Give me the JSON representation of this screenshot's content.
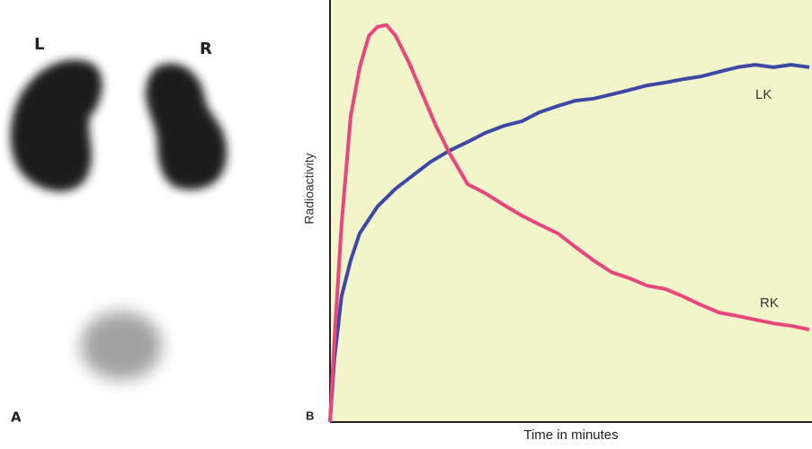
{
  "panel_a": {
    "letter": "A",
    "left_label": "L",
    "right_label": "R"
  },
  "chart_data": {
    "type": "line",
    "panel_letter": "B",
    "x_label": "Time in minutes",
    "y_label": "Radioactivity",
    "xlim": [
      0,
      100
    ],
    "ylim": [
      0,
      100
    ],
    "background": "#f1f5c9",
    "series": [
      {
        "name": "LK",
        "color": "#3c48a6",
        "x": [
          0,
          0.9,
          2.4,
          4.3,
          6.2,
          9.9,
          13.7,
          17.4,
          21.0,
          24.9,
          28.7,
          32.4,
          36.2,
          40.0,
          43.7,
          47.5,
          51.2,
          55.0,
          58.7,
          62.5,
          66.2,
          70.0,
          73.7,
          77.5,
          81.2,
          85.0,
          88.7,
          92.5,
          96.2,
          100
        ],
        "values": [
          0,
          15.2,
          30.4,
          39.1,
          45.7,
          52.2,
          56.5,
          59.8,
          63.0,
          65.7,
          67.8,
          70.0,
          71.7,
          72.8,
          75.0,
          76.5,
          77.8,
          78.3,
          79.3,
          80.4,
          81.5,
          82.2,
          83.0,
          83.7,
          84.8,
          85.9,
          86.5,
          85.9,
          86.5,
          85.9
        ]
      },
      {
        "name": "RK",
        "color": "#e8467c",
        "x": [
          0,
          0.9,
          2.4,
          4.3,
          6.2,
          8.1,
          9.9,
          11.8,
          13.7,
          16.5,
          19.3,
          22.1,
          24.9,
          28.7,
          32.4,
          36.2,
          40.0,
          43.7,
          47.5,
          51.2,
          55.0,
          58.7,
          62.5,
          66.2,
          70.0,
          73.7,
          77.5,
          81.2,
          85.0,
          88.7,
          92.5,
          96.2,
          100
        ],
        "values": [
          0,
          19.6,
          47.8,
          73.9,
          85.9,
          93.5,
          95.7,
          96.1,
          93.5,
          87.0,
          79.3,
          71.7,
          65.2,
          57.6,
          55.4,
          52.6,
          50.0,
          47.8,
          45.7,
          42.4,
          39.1,
          36.3,
          34.8,
          33.0,
          32.2,
          30.4,
          28.3,
          26.5,
          25.7,
          24.8,
          23.9,
          23.3,
          22.4
        ]
      }
    ]
  }
}
